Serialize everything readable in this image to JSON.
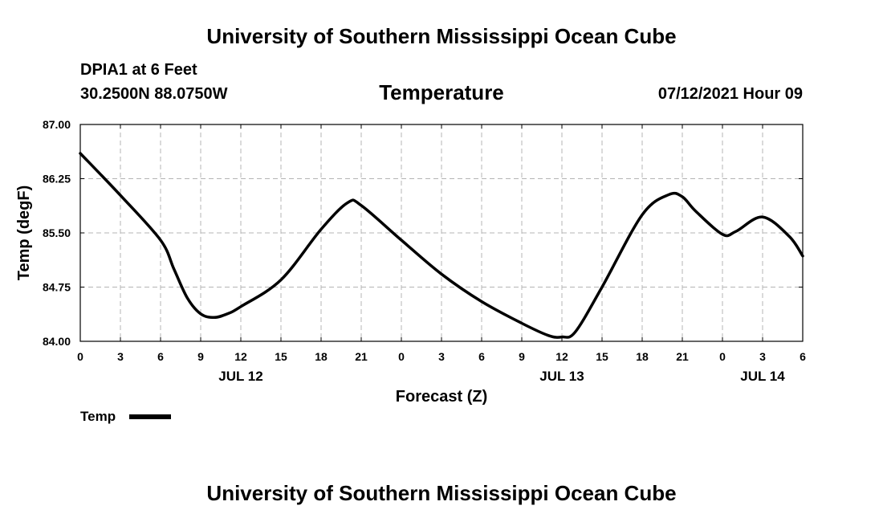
{
  "header": {
    "org_title": "University of Southern Mississippi Ocean Cube",
    "station": "DPIA1 at 6 Feet",
    "coordinates": "30.2500N  88.0750W",
    "variable": "Temperature",
    "datetime": "07/12/2021 Hour 09"
  },
  "footer": {
    "org_title": "University of Southern Mississippi Ocean Cube"
  },
  "legend": {
    "label": "Temp"
  },
  "chart_data": {
    "type": "line",
    "title": "Temperature",
    "xlabel": "Forecast (Z)",
    "ylabel": "Temp (degF)",
    "xlim": [
      0,
      54
    ],
    "ylim": [
      84.0,
      87.0
    ],
    "x_ticks": [
      0,
      3,
      6,
      9,
      12,
      15,
      18,
      21,
      24,
      27,
      30,
      33,
      36,
      39,
      42,
      45,
      48,
      51,
      54
    ],
    "x_tick_labels": [
      "0",
      "3",
      "6",
      "9",
      "12",
      "15",
      "18",
      "21",
      "0",
      "3",
      "6",
      "9",
      "12",
      "15",
      "18",
      "21",
      "0",
      "3",
      "6"
    ],
    "date_labels": [
      {
        "x": 12,
        "label": "JUL 12"
      },
      {
        "x": 36,
        "label": "JUL 13"
      },
      {
        "x": 51,
        "label": "JUL 14"
      }
    ],
    "y_ticks": [
      84.0,
      84.75,
      85.5,
      86.25,
      87.0
    ],
    "y_tick_labels": [
      "84.00",
      "84.75",
      "85.50",
      "86.25",
      "87.00"
    ],
    "grid": true,
    "series": [
      {
        "name": "Temp",
        "color": "#000000",
        "x": [
          0,
          3,
          6,
          7,
          8,
          9,
          10,
          11,
          12,
          15,
          18,
          20,
          21,
          24,
          27,
          30,
          33,
          35,
          36,
          37,
          39,
          42,
          44,
          45,
          46,
          48,
          49,
          51,
          53,
          54
        ],
        "y": [
          86.6,
          86.02,
          85.4,
          85.0,
          84.6,
          84.38,
          84.33,
          84.38,
          84.48,
          84.85,
          85.55,
          85.92,
          85.88,
          85.4,
          84.93,
          84.55,
          84.25,
          84.08,
          84.06,
          84.13,
          84.75,
          85.75,
          86.03,
          86.0,
          85.8,
          85.48,
          85.52,
          85.72,
          85.45,
          85.18
        ]
      }
    ]
  }
}
